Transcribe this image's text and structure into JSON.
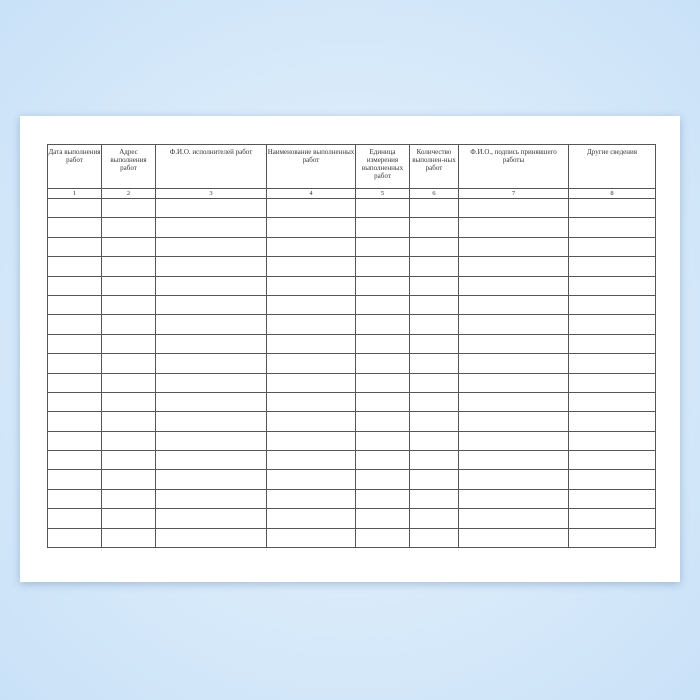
{
  "columns": [
    {
      "header": "Дата выполнения работ",
      "number": "1"
    },
    {
      "header": "Адрес выполнения работ",
      "number": "2"
    },
    {
      "header": "Ф.И.О. исполнителей работ",
      "number": "3"
    },
    {
      "header": "Наименование выполненных работ",
      "number": "4"
    },
    {
      "header": "Единица измерения выполненных работ",
      "number": "5"
    },
    {
      "header": "Количество выполнен-ных работ",
      "number": "6"
    },
    {
      "header": "Ф.И.О., подпись принявшего работы",
      "number": "7"
    },
    {
      "header": "Другие сведения",
      "number": "8"
    }
  ],
  "empty_rows": 18
}
